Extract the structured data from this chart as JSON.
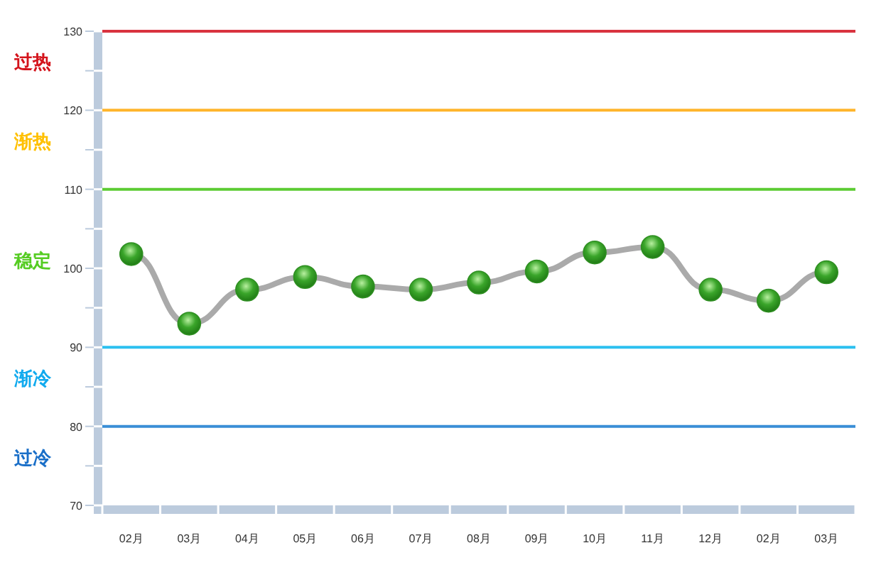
{
  "chart_data": {
    "type": "line",
    "categories": [
      "02月",
      "03月",
      "04月",
      "05月",
      "06月",
      "07月",
      "08月",
      "09月",
      "10月",
      "11月",
      "12月",
      "02月",
      "03月"
    ],
    "series": [
      {
        "color": "#aaaaaa",
        "values": [
          101.8,
          93.0,
          97.3,
          98.9,
          97.7,
          97.3,
          98.2,
          99.6,
          102.0,
          102.7,
          97.3,
          95.9,
          99.5
        ]
      }
    ],
    "ylim": [
      70,
      130
    ],
    "yticks": [
      70,
      {
        "value": 75,
        "label": null
      },
      80,
      {
        "value": 85,
        "label": null
      },
      90,
      {
        "value": 95,
        "label": null
      },
      100,
      {
        "value": 105,
        "label": null
      },
      110,
      {
        "value": 115,
        "label": null
      },
      120,
      {
        "value": 125,
        "label": null
      },
      130
    ],
    "ref_lines": [
      {
        "axis": "y",
        "value": 130,
        "color": "#d9333f"
      },
      {
        "axis": "y",
        "value": 120,
        "color": "#ffb52b"
      },
      {
        "axis": "y",
        "value": 110,
        "color": "#5ccc33"
      },
      {
        "axis": "y",
        "value": 90,
        "color": "#2cc0f0"
      },
      {
        "axis": "y",
        "value": 80,
        "color": "#3a8ed6"
      }
    ],
    "annotations": [
      "过热",
      "渐热",
      "稳定",
      "渐冷",
      "过冷"
    ],
    "marker": "circle",
    "grid": false
  }
}
